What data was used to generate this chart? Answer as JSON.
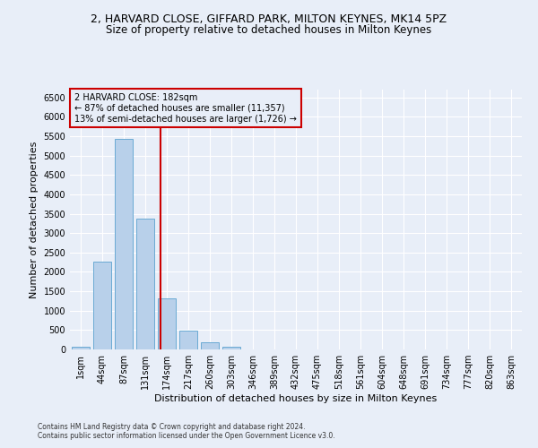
{
  "title_line1": "2, HARVARD CLOSE, GIFFARD PARK, MILTON KEYNES, MK14 5PZ",
  "title_line2": "Size of property relative to detached houses in Milton Keynes",
  "xlabel": "Distribution of detached houses by size in Milton Keynes",
  "ylabel": "Number of detached properties",
  "footnote1": "Contains HM Land Registry data © Crown copyright and database right 2024.",
  "footnote2": "Contains public sector information licensed under the Open Government Licence v3.0.",
  "bar_labels": [
    "1sqm",
    "44sqm",
    "87sqm",
    "131sqm",
    "174sqm",
    "217sqm",
    "260sqm",
    "303sqm",
    "346sqm",
    "389sqm",
    "432sqm",
    "475sqm",
    "518sqm",
    "561sqm",
    "604sqm",
    "648sqm",
    "691sqm",
    "734sqm",
    "777sqm",
    "820sqm",
    "863sqm"
  ],
  "bar_values": [
    60,
    2260,
    5420,
    3380,
    1310,
    490,
    190,
    75,
    0,
    0,
    0,
    0,
    0,
    0,
    0,
    0,
    0,
    0,
    0,
    0,
    0
  ],
  "bar_color": "#b8d0ea",
  "bar_edge_color": "#6aaad4",
  "annotation_text": "2 HARVARD CLOSE: 182sqm\n← 87% of detached houses are smaller (11,357)\n13% of semi-detached houses are larger (1,726) →",
  "vline_x": 3.72,
  "vline_color": "#cc0000",
  "annotation_box_color": "#cc0000",
  "ylim": [
    0,
    6700
  ],
  "yticks": [
    0,
    500,
    1000,
    1500,
    2000,
    2500,
    3000,
    3500,
    4000,
    4500,
    5000,
    5500,
    6000,
    6500
  ],
  "background_color": "#e8eef8",
  "grid_color": "#ffffff",
  "title_fontsize": 9,
  "subtitle_fontsize": 8.5,
  "ylabel_fontsize": 8,
  "xlabel_fontsize": 8,
  "tick_fontsize": 7,
  "annotation_fontsize": 7,
  "footnote_fontsize": 5.5
}
